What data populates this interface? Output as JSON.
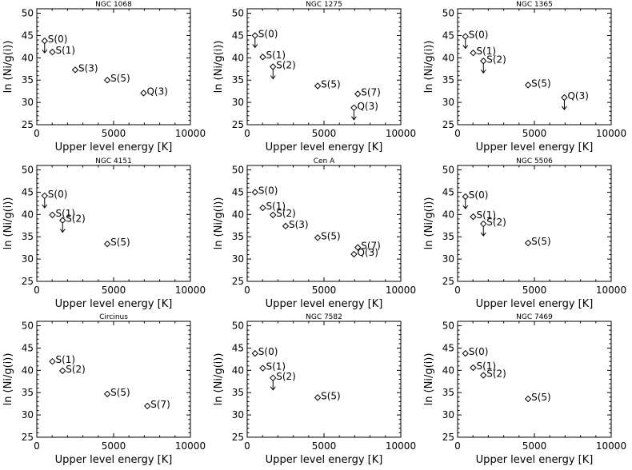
{
  "chart_data": [
    {
      "type": "scatter",
      "title": "NGC 1068",
      "xlabel": "Upper level energy [K]",
      "ylabel": "ln (Ni/g(i))",
      "xlim": [
        0,
        10000
      ],
      "ylim": [
        25,
        51
      ],
      "xticks": [
        "0",
        "5000",
        "10000"
      ],
      "yticks": [
        "25",
        "30",
        "35",
        "40",
        "45",
        "50"
      ],
      "grid": false,
      "points": [
        {
          "label": "S(0)",
          "x": 510,
          "y": 43.8,
          "upper_limit": true
        },
        {
          "label": "S(1)",
          "x": 1015,
          "y": 41.3,
          "upper_limit": false
        },
        {
          "label": "S(3)",
          "x": 2500,
          "y": 37.3,
          "upper_limit": false
        },
        {
          "label": "S(5)",
          "x": 4590,
          "y": 35.0,
          "upper_limit": false
        },
        {
          "label": "Q(3)",
          "x": 6950,
          "y": 32.1,
          "upper_limit": false
        }
      ]
    },
    {
      "type": "scatter",
      "title": "NGC 1275",
      "xlabel": "Upper level energy [K]",
      "ylabel": "ln (Ni/g(i))",
      "xlim": [
        0,
        10000
      ],
      "ylim": [
        25,
        51
      ],
      "xticks": [
        "0",
        "5000",
        "10000"
      ],
      "yticks": [
        "25",
        "30",
        "35",
        "40",
        "45",
        "50"
      ],
      "grid": false,
      "points": [
        {
          "label": "S(0)",
          "x": 510,
          "y": 45.0,
          "upper_limit": true
        },
        {
          "label": "S(1)",
          "x": 1015,
          "y": 40.2,
          "upper_limit": false
        },
        {
          "label": "S(2)",
          "x": 1680,
          "y": 38.0,
          "upper_limit": true
        },
        {
          "label": "S(5)",
          "x": 4590,
          "y": 33.7,
          "upper_limit": false
        },
        {
          "label": "S(7)",
          "x": 7200,
          "y": 31.9,
          "upper_limit": false
        },
        {
          "label": "Q(3)",
          "x": 6950,
          "y": 28.8,
          "upper_limit": true
        }
      ]
    },
    {
      "type": "scatter",
      "title": "NGC 1365",
      "xlabel": "Upper level energy [K]",
      "ylabel": "ln (Ni/g(i))",
      "xlim": [
        0,
        10000
      ],
      "ylim": [
        25,
        51
      ],
      "xticks": [
        "0",
        "5000",
        "10000"
      ],
      "yticks": [
        "25",
        "30",
        "35",
        "40",
        "45",
        "50"
      ],
      "grid": false,
      "points": [
        {
          "label": "S(0)",
          "x": 510,
          "y": 44.8,
          "upper_limit": true
        },
        {
          "label": "S(1)",
          "x": 1015,
          "y": 41.1,
          "upper_limit": false
        },
        {
          "label": "S(2)",
          "x": 1680,
          "y": 39.3,
          "upper_limit": true
        },
        {
          "label": "S(5)",
          "x": 4590,
          "y": 33.9,
          "upper_limit": false
        },
        {
          "label": "Q(3)",
          "x": 6950,
          "y": 31.1,
          "upper_limit": true
        }
      ]
    },
    {
      "type": "scatter",
      "title": "NGC 4151",
      "xlabel": "Upper level energy [K]",
      "ylabel": "ln (Ni/g(i))",
      "xlim": [
        0,
        10000
      ],
      "ylim": [
        25,
        51
      ],
      "xticks": [
        "0",
        "5000",
        "10000"
      ],
      "yticks": [
        "25",
        "30",
        "35",
        "40",
        "45",
        "50"
      ],
      "grid": false,
      "points": [
        {
          "label": "S(0)",
          "x": 510,
          "y": 44.2,
          "upper_limit": true
        },
        {
          "label": "S(1)",
          "x": 1015,
          "y": 39.9,
          "upper_limit": false
        },
        {
          "label": "S(2)",
          "x": 1680,
          "y": 38.7,
          "upper_limit": true
        },
        {
          "label": "S(5)",
          "x": 4590,
          "y": 33.4,
          "upper_limit": false
        }
      ]
    },
    {
      "type": "scatter",
      "title": "Cen A",
      "xlabel": "Upper level energy [K]",
      "ylabel": "ln (Ni/g(i))",
      "xlim": [
        0,
        10000
      ],
      "ylim": [
        25,
        51
      ],
      "xticks": [
        "0",
        "5000",
        "10000"
      ],
      "yticks": [
        "25",
        "30",
        "35",
        "40",
        "45",
        "50"
      ],
      "grid": false,
      "points": [
        {
          "label": "S(0)",
          "x": 510,
          "y": 45.0,
          "upper_limit": false
        },
        {
          "label": "S(1)",
          "x": 1015,
          "y": 41.5,
          "upper_limit": false
        },
        {
          "label": "S(2)",
          "x": 1680,
          "y": 39.9,
          "upper_limit": false
        },
        {
          "label": "S(3)",
          "x": 2500,
          "y": 37.4,
          "upper_limit": false
        },
        {
          "label": "S(5)",
          "x": 4590,
          "y": 34.8,
          "upper_limit": false
        },
        {
          "label": "S(7)",
          "x": 7200,
          "y": 32.6,
          "upper_limit": false
        },
        {
          "label": "Q(3)",
          "x": 6950,
          "y": 31.1,
          "upper_limit": false
        }
      ]
    },
    {
      "type": "scatter",
      "title": "NGC 5506",
      "xlabel": "Upper level energy [K]",
      "ylabel": "ln (Ni/g(i))",
      "xlim": [
        0,
        10000
      ],
      "ylim": [
        25,
        51
      ],
      "xticks": [
        "0",
        "5000",
        "10000"
      ],
      "yticks": [
        "25",
        "30",
        "35",
        "40",
        "45",
        "50"
      ],
      "grid": false,
      "points": [
        {
          "label": "S(0)",
          "x": 510,
          "y": 44.0,
          "upper_limit": true
        },
        {
          "label": "S(1)",
          "x": 1015,
          "y": 39.5,
          "upper_limit": false
        },
        {
          "label": "S(2)",
          "x": 1680,
          "y": 37.9,
          "upper_limit": true
        },
        {
          "label": "S(5)",
          "x": 4590,
          "y": 33.6,
          "upper_limit": false
        }
      ]
    },
    {
      "type": "scatter",
      "title": "Circinus",
      "xlabel": "Upper level energy [K]",
      "ylabel": "ln (Ni/g(i))",
      "xlim": [
        0,
        10000
      ],
      "ylim": [
        25,
        51
      ],
      "xticks": [
        "0",
        "5000",
        "10000"
      ],
      "yticks": [
        "25",
        "30",
        "35",
        "40",
        "45",
        "50"
      ],
      "grid": false,
      "points": [
        {
          "label": "S(1)",
          "x": 1015,
          "y": 42.0,
          "upper_limit": false
        },
        {
          "label": "S(2)",
          "x": 1680,
          "y": 39.9,
          "upper_limit": false
        },
        {
          "label": "S(5)",
          "x": 4590,
          "y": 34.7,
          "upper_limit": false
        },
        {
          "label": "S(7)",
          "x": 7200,
          "y": 32.0,
          "upper_limit": false
        }
      ]
    },
    {
      "type": "scatter",
      "title": "NGC 7582",
      "xlabel": "Upper level energy [K]",
      "ylabel": "ln (Ni/g(i))",
      "xlim": [
        0,
        10000
      ],
      "ylim": [
        25,
        51
      ],
      "xticks": [
        "0",
        "5000",
        "10000"
      ],
      "yticks": [
        "25",
        "30",
        "35",
        "40",
        "45",
        "50"
      ],
      "grid": false,
      "points": [
        {
          "label": "S(0)",
          "x": 510,
          "y": 43.8,
          "upper_limit": false
        },
        {
          "label": "S(1)",
          "x": 1015,
          "y": 40.5,
          "upper_limit": false
        },
        {
          "label": "S(2)",
          "x": 1680,
          "y": 38.3,
          "upper_limit": true
        },
        {
          "label": "S(5)",
          "x": 4590,
          "y": 33.9,
          "upper_limit": false
        }
      ]
    },
    {
      "type": "scatter",
      "title": "NGC 7469",
      "xlabel": "Upper level energy [K]",
      "ylabel": "ln (Ni/g(i))",
      "xlim": [
        0,
        10000
      ],
      "ylim": [
        25,
        51
      ],
      "xticks": [
        "0",
        "5000",
        "10000"
      ],
      "yticks": [
        "25",
        "30",
        "35",
        "40",
        "45",
        "50"
      ],
      "grid": false,
      "points": [
        {
          "label": "S(0)",
          "x": 510,
          "y": 43.8,
          "upper_limit": false
        },
        {
          "label": "S(1)",
          "x": 1015,
          "y": 40.6,
          "upper_limit": false
        },
        {
          "label": "S(2)",
          "x": 1680,
          "y": 38.9,
          "upper_limit": false
        },
        {
          "label": "S(5)",
          "x": 4590,
          "y": 33.6,
          "upper_limit": false
        }
      ]
    }
  ]
}
